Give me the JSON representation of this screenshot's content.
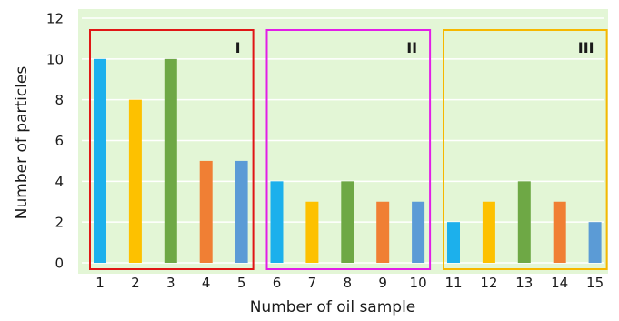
{
  "chart_data": {
    "type": "bar",
    "xlabel": "Number of oil sample",
    "ylabel": "Number of particles",
    "ylim": [
      0,
      12
    ],
    "yticks": [
      0,
      2,
      4,
      6,
      8,
      10,
      12
    ],
    "grid": true,
    "categories": [
      "1",
      "2",
      "3",
      "4",
      "5",
      "6",
      "7",
      "8",
      "9",
      "10",
      "11",
      "12",
      "13",
      "14",
      "15"
    ],
    "values": [
      10,
      8,
      10,
      5,
      5,
      4,
      3,
      4,
      3,
      3,
      2,
      3,
      4,
      3,
      2
    ],
    "bar_colors": [
      "#1cb0ec",
      "#fdc100",
      "#6ea845",
      "#f07f34",
      "#5b9bd6",
      "#1cb0ec",
      "#fdc100",
      "#6ea845",
      "#f07f34",
      "#5b9bd6",
      "#1cb0ec",
      "#fdc100",
      "#6ea845",
      "#f07f34",
      "#5b9bd6"
    ],
    "plot_background": "#e3f6d6",
    "groups": [
      {
        "label": "I",
        "from": "1",
        "to": "5",
        "color": "#e01616"
      },
      {
        "label": "II",
        "from": "6",
        "to": "10",
        "color": "#e21ee6"
      },
      {
        "label": "III",
        "from": "11",
        "to": "15",
        "color": "#f6b800"
      }
    ]
  }
}
